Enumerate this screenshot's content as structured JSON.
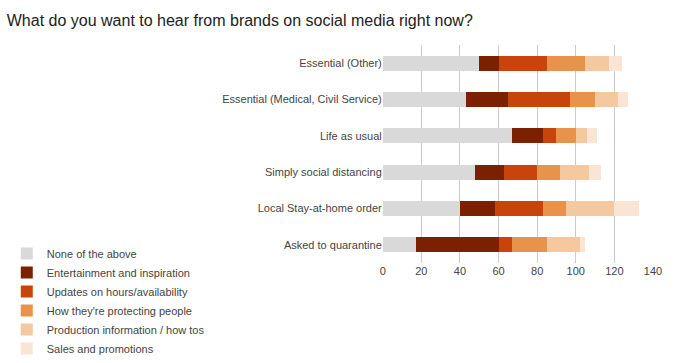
{
  "chart_data": {
    "type": "bar",
    "orientation": "horizontal",
    "stacked": true,
    "title": "What do you want to hear from brands on social media right now?",
    "categories": [
      "Essential (Other)",
      "Essential (Medical, Civil Service)",
      "Life as usual",
      "Simply social distancing",
      "Local Stay-at-home order",
      "Asked to quarantine"
    ],
    "series": [
      {
        "name": "None of the above",
        "color": "#d9d9d9",
        "values": [
          50,
          43,
          67,
          48,
          40,
          17
        ]
      },
      {
        "name": "Entertainment and inspiration",
        "color": "#7b2000",
        "values": [
          10,
          22,
          16,
          15,
          18,
          43
        ]
      },
      {
        "name": "Updates on hours/availability",
        "color": "#c8440a",
        "values": [
          25,
          32,
          7,
          17,
          25,
          7
        ]
      },
      {
        "name": "How they're protecting people",
        "color": "#e8924a",
        "values": [
          20,
          13,
          10,
          12,
          12,
          18
        ]
      },
      {
        "name": "Production information / how tos",
        "color": "#f5c9a0",
        "values": [
          12,
          12,
          6,
          15,
          25,
          17
        ]
      },
      {
        "name": "Sales and promotions",
        "color": "#fae4d4",
        "values": [
          7,
          5,
          5,
          6,
          13,
          3
        ]
      }
    ],
    "xlim": [
      0,
      140
    ],
    "xticks": [
      0,
      20,
      40,
      60,
      80,
      100,
      120,
      140
    ],
    "grid": true,
    "legend": "bottom"
  }
}
